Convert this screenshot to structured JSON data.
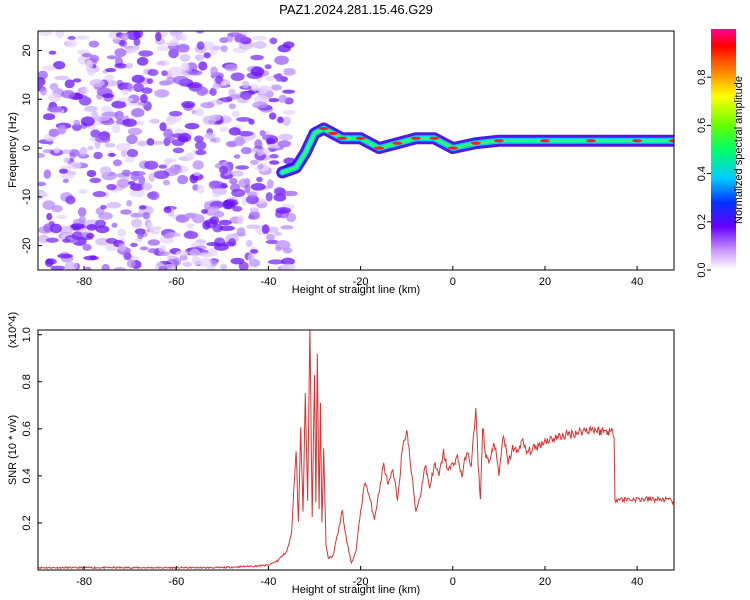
{
  "title": "PAZ1.2024.281.15.46.G29",
  "colors": {
    "snr_line": "#e03030",
    "noise": "#7a2cff",
    "plot_border": "#000000"
  },
  "chart_data": [
    {
      "type": "heatmap",
      "title": "PAZ1.2024.281.15.46.G29",
      "xlabel": "Height of straight line (km)",
      "ylabel": "Frequency (Hz)",
      "xlim": [
        -90,
        48
      ],
      "ylim": [
        -25,
        24
      ],
      "xticks": [
        "-80",
        "-60",
        "-40",
        "-20",
        "0",
        "20",
        "40"
      ],
      "yticks": [
        "20",
        "10",
        "0",
        "-10",
        "-20"
      ],
      "signal_track": {
        "x": [
          -37,
          -34,
          -32,
          -30,
          -28,
          -26,
          -24,
          -20,
          -16,
          -12,
          -8,
          -4,
          0,
          5,
          10,
          20,
          30,
          40,
          48
        ],
        "y": [
          -5,
          -4,
          -1,
          3,
          4,
          3,
          2,
          2,
          0,
          1,
          2,
          2,
          0,
          1,
          1.5,
          1.5,
          1.5,
          1.5,
          1.5
        ]
      },
      "colorbar": {
        "label": "Normalized spectral amplitude",
        "range": [
          0,
          1
        ],
        "ticks": [
          "0.0",
          "0.2",
          "0.4",
          "0.6",
          "0.8"
        ]
      }
    },
    {
      "type": "line",
      "xlabel": "Height of straight line (km)",
      "ylabel": "SNR (10 * v/v)",
      "yscale_label": "(x10^4)",
      "xlim": [
        -90,
        48
      ],
      "ylim": [
        0,
        1.02
      ],
      "xticks": [
        "-80",
        "-60",
        "-40",
        "-20",
        "0",
        "20",
        "40"
      ],
      "yticks": [
        "0.2",
        "0.4",
        "0.6",
        "0.8",
        "1.0"
      ],
      "series": [
        {
          "x": [
            -90,
            -70,
            -50,
            -40,
            -38,
            -36,
            -35,
            -34,
            -33.5,
            -33,
            -32.5,
            -32,
            -31.5,
            -31,
            -30.5,
            -30,
            -29.7,
            -29.4,
            -29,
            -28.7,
            -28.4,
            -28,
            -27.5,
            -27,
            -26,
            -25,
            -24,
            -23,
            -22,
            -21,
            -20,
            -19,
            -18,
            -17,
            -16,
            -15,
            -14,
            -13,
            -12,
            -11,
            -10,
            -9,
            -8,
            -7,
            -6,
            -5,
            -4,
            -3,
            -2,
            -1,
            0,
            1,
            2,
            3,
            4,
            5,
            5.5,
            6,
            6.5,
            7,
            8,
            9,
            10,
            11,
            12,
            13,
            14,
            15,
            16,
            18,
            20,
            22,
            24,
            26,
            28,
            30,
            32,
            34,
            35,
            35.2,
            36,
            38,
            40,
            42,
            44,
            46,
            48
          ],
          "y": [
            0.01,
            0.01,
            0.01,
            0.02,
            0.04,
            0.08,
            0.15,
            0.52,
            0.2,
            0.6,
            0.25,
            0.75,
            0.3,
            1.01,
            0.22,
            0.85,
            0.3,
            0.95,
            0.25,
            0.7,
            0.2,
            0.5,
            0.1,
            0.05,
            0.06,
            0.15,
            0.25,
            0.12,
            0.03,
            0.08,
            0.25,
            0.38,
            0.3,
            0.22,
            0.33,
            0.45,
            0.36,
            0.42,
            0.3,
            0.5,
            0.6,
            0.42,
            0.25,
            0.32,
            0.45,
            0.35,
            0.45,
            0.4,
            0.5,
            0.42,
            0.45,
            0.48,
            0.4,
            0.5,
            0.45,
            0.68,
            0.45,
            0.3,
            0.62,
            0.5,
            0.45,
            0.55,
            0.4,
            0.58,
            0.45,
            0.52,
            0.5,
            0.55,
            0.5,
            0.52,
            0.55,
            0.56,
            0.57,
            0.58,
            0.59,
            0.6,
            0.59,
            0.59,
            0.58,
            0.3,
            0.3,
            0.3,
            0.3,
            0.3,
            0.3,
            0.3,
            0.29
          ]
        }
      ]
    }
  ]
}
